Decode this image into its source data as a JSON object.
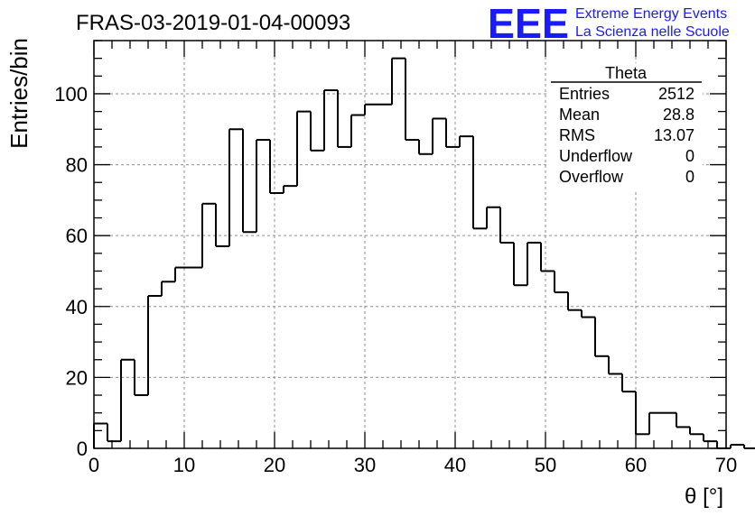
{
  "title": "FRAS-03-2019-01-04-00093",
  "logo": {
    "mark": "EEE",
    "line1": "Extreme Energy Events",
    "line2": "La Scienza nelle Scuole",
    "color": "#1a1aff"
  },
  "chart_data": {
    "type": "histogram",
    "xlabel": "θ [°]",
    "ylabel": "Entries/bin",
    "xlim": [
      0,
      70
    ],
    "ylim": [
      0,
      115
    ],
    "x_ticks": [
      0,
      10,
      20,
      30,
      40,
      50,
      60,
      70
    ],
    "y_ticks": [
      0,
      20,
      40,
      60,
      80,
      100
    ],
    "grid": true,
    "bin_width": 1.5,
    "bin_start": 0,
    "values": [
      7,
      2,
      25,
      15,
      43,
      47,
      51,
      51,
      69,
      57,
      90,
      61,
      87,
      72,
      74,
      95,
      84,
      101,
      85,
      94,
      97,
      97,
      110,
      87,
      83,
      93,
      85,
      88,
      62,
      68,
      58,
      46,
      58,
      50,
      44,
      39,
      37,
      26,
      21,
      16,
      4,
      10,
      10,
      6,
      4,
      2,
      0,
      1,
      0
    ],
    "stats_box": {
      "title": "Theta",
      "position": "top-right",
      "rows": [
        {
          "label": "Entries",
          "value": "2512"
        },
        {
          "label": "Mean",
          "value": "28.8"
        },
        {
          "label": "RMS",
          "value": "13.07"
        },
        {
          "label": "Underflow",
          "value": "0"
        },
        {
          "label": "Overflow",
          "value": "0"
        }
      ]
    }
  }
}
